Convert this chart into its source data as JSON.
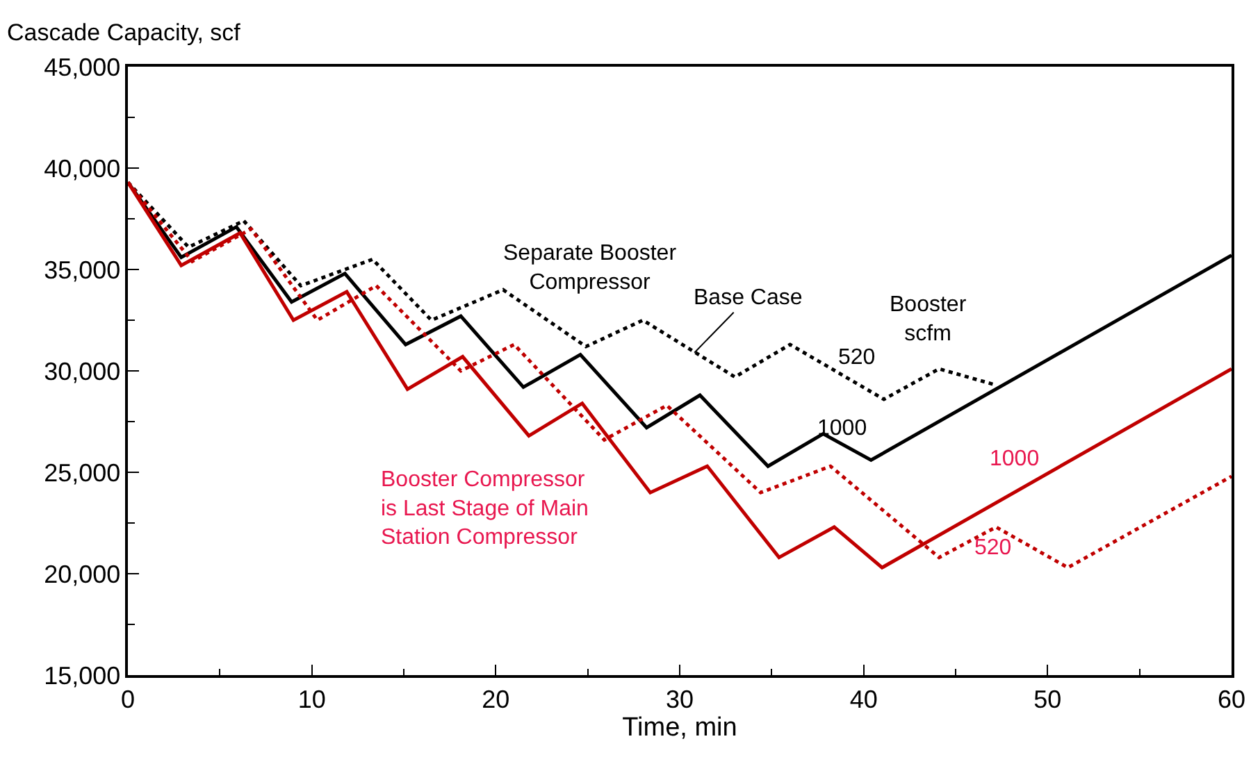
{
  "chart_data": {
    "type": "line",
    "ylabel": "Cascade Capacity, scf",
    "xlabel": "Time, min",
    "xlim": [
      0,
      60
    ],
    "xticks": [
      0,
      10,
      20,
      30,
      40,
      50,
      60
    ],
    "ylim": [
      15000,
      45000
    ],
    "yticks": [
      {
        "value": 15000,
        "label": "15,000"
      },
      {
        "value": 20000,
        "label": "20,000"
      },
      {
        "value": 25000,
        "label": "25,000"
      },
      {
        "value": 30000,
        "label": "30,000"
      },
      {
        "value": 35000,
        "label": "35,000"
      },
      {
        "value": 40000,
        "label": "40,000"
      },
      {
        "value": 45000,
        "label": "45,000"
      }
    ],
    "grid": false,
    "marker": "none",
    "series": [
      {
        "color": "#000000",
        "line_style": "solid",
        "x": [
          0,
          2.9,
          5.9,
          8.9,
          11.8,
          15.1,
          18.1,
          21.5,
          24.6,
          28.2,
          31.1,
          34.8,
          37.8,
          40.4,
          60
        ],
        "values": [
          39300,
          35600,
          37100,
          33400,
          34800,
          31300,
          32700,
          29200,
          30800,
          27200,
          28800,
          25300,
          26900,
          25600,
          35700
        ]
      },
      {
        "color": "#000000",
        "line_style": "dotted",
        "x": [
          0,
          3.3,
          6.3,
          9.4,
          13.3,
          16.5,
          20.4,
          24.9,
          28.0,
          33.0,
          36.0,
          41.1,
          44.1,
          47.2
        ],
        "values": [
          39300,
          36100,
          37400,
          34200,
          35500,
          32500,
          34000,
          31200,
          32500,
          29700,
          31300,
          28600,
          30100,
          29300
        ]
      },
      {
        "color": "#c00000",
        "line_style": "solid",
        "x": [
          0,
          2.9,
          6.1,
          9.0,
          11.9,
          15.2,
          18.2,
          21.8,
          24.7,
          28.4,
          31.5,
          35.4,
          38.4,
          41.0,
          60
        ],
        "values": [
          39300,
          35200,
          36800,
          32500,
          33900,
          29100,
          30700,
          26800,
          28400,
          24000,
          25300,
          20800,
          22300,
          20300,
          30100
        ]
      },
      {
        "color": "#c00000",
        "line_style": "dotted",
        "x": [
          0,
          3.5,
          6.7,
          10.3,
          13.5,
          18.1,
          21.0,
          25.9,
          29.3,
          34.4,
          38.2,
          44.1,
          47.2,
          51.1,
          60
        ],
        "values": [
          39300,
          35400,
          37000,
          32500,
          34200,
          30000,
          31300,
          26600,
          28300,
          24000,
          25300,
          20800,
          22300,
          20300,
          24800
        ]
      }
    ],
    "annotations": [
      "Separate Booster\nCompressor",
      {
        "text": "Base Case",
        "x": 30.8,
        "y": 30900
      },
      "Booster\nscfm",
      "520",
      "1000",
      "1000",
      "520",
      "Booster Compressor\nis Last Stage of Main\nStation Compressor"
    ]
  }
}
